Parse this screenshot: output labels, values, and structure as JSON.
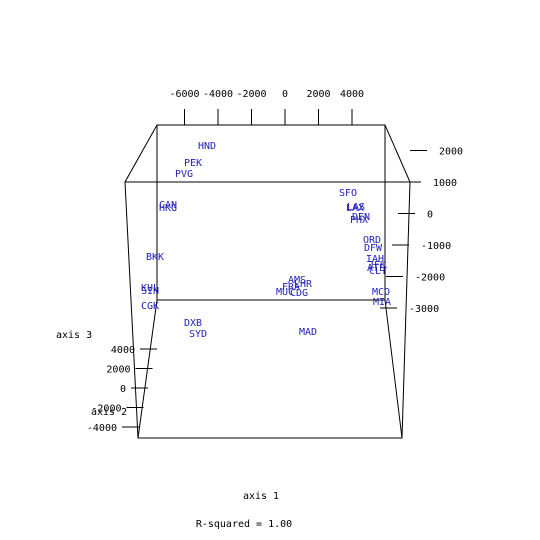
{
  "chart_data": {
    "type": "scatter",
    "subtype": "3d-scatter-text-labels",
    "xlabel": "axis 1",
    "ylabel": "axis 2",
    "zlabel": "axis 3",
    "caption": "R-squared = 1.00",
    "colors": {
      "points": "#2222bb",
      "axes": "#000000",
      "background": "#ffffff"
    },
    "x_axis": {
      "ticks": [
        -6000,
        -4000,
        -2000,
        0,
        2000,
        4000
      ],
      "labels": [
        "-6000",
        "-4000",
        "-2000",
        "0",
        "2000",
        "4000"
      ]
    },
    "y_axis": {
      "ticks": [
        -4000,
        -2000,
        0,
        2000,
        4000
      ],
      "labels": [
        "-4000",
        "-2000",
        "0",
        "2000",
        "4000"
      ]
    },
    "z_axis": {
      "ticks": [
        2000,
        1000,
        0,
        -1000,
        -2000,
        -3000
      ],
      "labels": [
        "2000",
        "1000",
        "0",
        "-1000",
        "-2000",
        "-3000"
      ]
    },
    "points": [
      {
        "name": "HND",
        "sx": 207,
        "sy": 145
      },
      {
        "name": "PEK",
        "sx": 193,
        "sy": 162
      },
      {
        "name": "PVG",
        "sx": 184,
        "sy": 173
      },
      {
        "name": "SFO",
        "sx": 348,
        "sy": 192
      },
      {
        "name": "CAN",
        "sx": 168,
        "sy": 204
      },
      {
        "name": "HKG",
        "sx": 168,
        "sy": 207
      },
      {
        "name": "LAX",
        "sx": 355,
        "sy": 207
      },
      {
        "name": "LAS",
        "sx": 356,
        "sy": 206
      },
      {
        "name": "DEN",
        "sx": 361,
        "sy": 216
      },
      {
        "name": "PHX",
        "sx": 359,
        "sy": 219
      },
      {
        "name": "ORD",
        "sx": 372,
        "sy": 239
      },
      {
        "name": "DFW",
        "sx": 373,
        "sy": 247
      },
      {
        "name": "IAH",
        "sx": 375,
        "sy": 258
      },
      {
        "name": "JFK",
        "sx": 377,
        "sy": 264
      },
      {
        "name": "ATL",
        "sx": 376,
        "sy": 267
      },
      {
        "name": "CLT",
        "sx": 378,
        "sy": 270
      },
      {
        "name": "BKK",
        "sx": 155,
        "sy": 256
      },
      {
        "name": "KUL",
        "sx": 150,
        "sy": 287
      },
      {
        "name": "SIN",
        "sx": 150,
        "sy": 290
      },
      {
        "name": "CGK",
        "sx": 150,
        "sy": 305
      },
      {
        "name": "AMS",
        "sx": 297,
        "sy": 279
      },
      {
        "name": "LHR",
        "sx": 303,
        "sy": 283
      },
      {
        "name": "FRA",
        "sx": 291,
        "sy": 286
      },
      {
        "name": "MUC",
        "sx": 285,
        "sy": 291
      },
      {
        "name": "CDG",
        "sx": 299,
        "sy": 292
      },
      {
        "name": "MCO",
        "sx": 381,
        "sy": 291
      },
      {
        "name": "MIA",
        "sx": 382,
        "sy": 301
      },
      {
        "name": "DXB",
        "sx": 193,
        "sy": 322
      },
      {
        "name": "SYD",
        "sx": 198,
        "sy": 333
      },
      {
        "name": "MAD",
        "sx": 308,
        "sy": 331
      }
    ]
  }
}
